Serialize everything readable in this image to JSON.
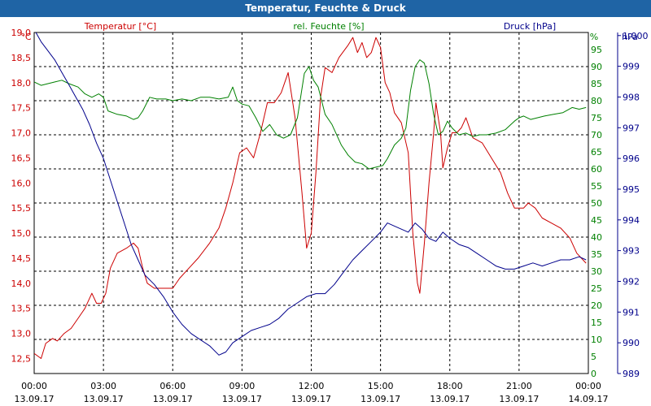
{
  "window": {
    "title": "Temperatur, Feuchte & Druck"
  },
  "colors": {
    "temp": "#cc0000",
    "humidity": "#008000",
    "pressure": "#00008b",
    "grid": "#000000",
    "axis_text": "#000000"
  },
  "chart_data": {
    "type": "line",
    "title": "Temperatur, Feuchte & Druck",
    "x_ticks": [
      {
        "t": 0,
        "time": "00:00",
        "date": "13.09.17"
      },
      {
        "t": 3,
        "time": "03:00",
        "date": "13.09.17"
      },
      {
        "t": 6,
        "time": "06:00",
        "date": "13.09.17"
      },
      {
        "t": 9,
        "time": "09:00",
        "date": "13.09.17"
      },
      {
        "t": 12,
        "time": "12:00",
        "date": "13.09.17"
      },
      {
        "t": 15,
        "time": "15:00",
        "date": "13.09.17"
      },
      {
        "t": 18,
        "time": "18:00",
        "date": "13.09.17"
      },
      {
        "t": 21,
        "time": "21:00",
        "date": "13.09.17"
      },
      {
        "t": 24,
        "time": "00:00",
        "date": "14.09.17"
      }
    ],
    "axes": {
      "temp": {
        "label": "Temperatur [°C]",
        "unit": "°C",
        "min": 12.2,
        "max": 19.0,
        "ticks": [
          "12,5",
          "13,0",
          "13,5",
          "14,0",
          "14,5",
          "15,0",
          "15,5",
          "16,0",
          "16,5",
          "17,0",
          "17,5",
          "18,0",
          "18,5",
          "19,0"
        ]
      },
      "humidity": {
        "label": "rel. Feuchte [%]",
        "unit": "%",
        "min": 0,
        "max": 100,
        "ticks": [
          "0",
          "5",
          "10",
          "15",
          "20",
          "25",
          "30",
          "35",
          "40",
          "45",
          "50",
          "55",
          "60",
          "65",
          "70",
          "75",
          "80",
          "85",
          "90",
          "95"
        ]
      },
      "pressure": {
        "label": "Druck [hPa]",
        "unit": "hPa",
        "min": 989,
        "max": 1000.1,
        "ticks": [
          "989",
          "990",
          "991",
          "992",
          "993",
          "994",
          "995",
          "996",
          "997",
          "998",
          "999",
          "1.000"
        ]
      }
    },
    "series": [
      {
        "name": "Temperatur",
        "axis": "temp",
        "color": "#cc0000",
        "points": [
          [
            0,
            12.6
          ],
          [
            0.3,
            12.5
          ],
          [
            0.5,
            12.8
          ],
          [
            0.8,
            12.9
          ],
          [
            1.0,
            12.85
          ],
          [
            1.3,
            13.0
          ],
          [
            1.6,
            13.1
          ],
          [
            1.9,
            13.3
          ],
          [
            2.2,
            13.5
          ],
          [
            2.5,
            13.8
          ],
          [
            2.7,
            13.6
          ],
          [
            2.9,
            13.6
          ],
          [
            3.1,
            13.8
          ],
          [
            3.3,
            14.3
          ],
          [
            3.6,
            14.6
          ],
          [
            4.0,
            14.7
          ],
          [
            4.3,
            14.8
          ],
          [
            4.5,
            14.7
          ],
          [
            4.7,
            14.3
          ],
          [
            4.9,
            14.0
          ],
          [
            5.2,
            13.9
          ],
          [
            5.6,
            13.9
          ],
          [
            6.0,
            13.9
          ],
          [
            6.3,
            14.1
          ],
          [
            6.7,
            14.3
          ],
          [
            7.1,
            14.5
          ],
          [
            7.6,
            14.8
          ],
          [
            8.0,
            15.1
          ],
          [
            8.3,
            15.5
          ],
          [
            8.6,
            16.0
          ],
          [
            8.9,
            16.6
          ],
          [
            9.2,
            16.7
          ],
          [
            9.5,
            16.5
          ],
          [
            9.8,
            17.0
          ],
          [
            10.1,
            17.6
          ],
          [
            10.4,
            17.6
          ],
          [
            10.7,
            17.8
          ],
          [
            11.0,
            18.2
          ],
          [
            11.3,
            17.3
          ],
          [
            11.6,
            15.8
          ],
          [
            11.8,
            14.7
          ],
          [
            12.0,
            15.0
          ],
          [
            12.2,
            16.2
          ],
          [
            12.4,
            17.7
          ],
          [
            12.6,
            18.3
          ],
          [
            12.9,
            18.2
          ],
          [
            13.2,
            18.5
          ],
          [
            13.6,
            18.75
          ],
          [
            13.8,
            18.9
          ],
          [
            14.0,
            18.6
          ],
          [
            14.2,
            18.8
          ],
          [
            14.4,
            18.5
          ],
          [
            14.6,
            18.6
          ],
          [
            14.8,
            18.9
          ],
          [
            15.0,
            18.7
          ],
          [
            15.2,
            18.0
          ],
          [
            15.4,
            17.8
          ],
          [
            15.6,
            17.4
          ],
          [
            15.9,
            17.2
          ],
          [
            16.2,
            16.6
          ],
          [
            16.4,
            15.0
          ],
          [
            16.6,
            14.0
          ],
          [
            16.7,
            13.8
          ],
          [
            16.9,
            14.8
          ],
          [
            17.1,
            16.0
          ],
          [
            17.3,
            17.0
          ],
          [
            17.4,
            17.6
          ],
          [
            17.6,
            17.0
          ],
          [
            17.7,
            16.3
          ],
          [
            17.9,
            16.7
          ],
          [
            18.1,
            17.0
          ],
          [
            18.3,
            17.0
          ],
          [
            18.5,
            17.1
          ],
          [
            18.7,
            17.3
          ],
          [
            19.0,
            16.9
          ],
          [
            19.4,
            16.8
          ],
          [
            19.8,
            16.5
          ],
          [
            20.2,
            16.2
          ],
          [
            20.5,
            15.8
          ],
          [
            20.8,
            15.5
          ],
          [
            21.2,
            15.5
          ],
          [
            21.4,
            15.6
          ],
          [
            21.7,
            15.5
          ],
          [
            22.0,
            15.3
          ],
          [
            22.4,
            15.2
          ],
          [
            22.8,
            15.1
          ],
          [
            23.2,
            14.9
          ],
          [
            23.5,
            14.6
          ],
          [
            23.9,
            14.4
          ]
        ]
      },
      {
        "name": "rel. Feuchte",
        "axis": "humidity",
        "color": "#008000",
        "points": [
          [
            0,
            85.5
          ],
          [
            0.3,
            84.5
          ],
          [
            0.6,
            85
          ],
          [
            0.9,
            85.5
          ],
          [
            1.2,
            86
          ],
          [
            1.5,
            85
          ],
          [
            1.9,
            84
          ],
          [
            2.2,
            82
          ],
          [
            2.5,
            81
          ],
          [
            2.8,
            82
          ],
          [
            3.0,
            81
          ],
          [
            3.2,
            77
          ],
          [
            3.6,
            76
          ],
          [
            4.0,
            75.5
          ],
          [
            4.3,
            74.5
          ],
          [
            4.5,
            75
          ],
          [
            4.7,
            77
          ],
          [
            5.0,
            81
          ],
          [
            5.3,
            80.5
          ],
          [
            5.7,
            80.5
          ],
          [
            6.0,
            80
          ],
          [
            6.4,
            80.5
          ],
          [
            6.8,
            80
          ],
          [
            7.2,
            81
          ],
          [
            7.6,
            81
          ],
          [
            8.0,
            80.5
          ],
          [
            8.4,
            81
          ],
          [
            8.6,
            84
          ],
          [
            8.8,
            80
          ],
          [
            9.0,
            79
          ],
          [
            9.3,
            78.5
          ],
          [
            9.6,
            75
          ],
          [
            9.9,
            71
          ],
          [
            10.2,
            73
          ],
          [
            10.5,
            70
          ],
          [
            10.8,
            69
          ],
          [
            11.1,
            70
          ],
          [
            11.4,
            75
          ],
          [
            11.7,
            88
          ],
          [
            11.9,
            90
          ],
          [
            12.1,
            86
          ],
          [
            12.3,
            84
          ],
          [
            12.6,
            76
          ],
          [
            12.9,
            73
          ],
          [
            13.3,
            67
          ],
          [
            13.6,
            64
          ],
          [
            13.9,
            62
          ],
          [
            14.2,
            61.5
          ],
          [
            14.5,
            60
          ],
          [
            14.8,
            60.5
          ],
          [
            15.1,
            61
          ],
          [
            15.3,
            63
          ],
          [
            15.6,
            67
          ],
          [
            15.9,
            69
          ],
          [
            16.1,
            72
          ],
          [
            16.3,
            83
          ],
          [
            16.5,
            90
          ],
          [
            16.7,
            92
          ],
          [
            16.9,
            91
          ],
          [
            17.1,
            85
          ],
          [
            17.3,
            76
          ],
          [
            17.5,
            70
          ],
          [
            17.7,
            71
          ],
          [
            17.9,
            74
          ],
          [
            18.1,
            72
          ],
          [
            18.4,
            70
          ],
          [
            18.7,
            70.5
          ],
          [
            19.0,
            69.5
          ],
          [
            19.3,
            70
          ],
          [
            19.6,
            70
          ],
          [
            20.0,
            70.5
          ],
          [
            20.4,
            71.5
          ],
          [
            20.8,
            74
          ],
          [
            21.0,
            75
          ],
          [
            21.2,
            75.5
          ],
          [
            21.5,
            74.5
          ],
          [
            21.8,
            75
          ],
          [
            22.1,
            75.5
          ],
          [
            22.5,
            76
          ],
          [
            22.9,
            76.5
          ],
          [
            23.3,
            78
          ],
          [
            23.6,
            77.5
          ],
          [
            23.9,
            78
          ]
        ]
      },
      {
        "name": "Druck",
        "axis": "pressure",
        "color": "#00008b",
        "points": [
          [
            0,
            1000.2
          ],
          [
            0.3,
            999.8
          ],
          [
            0.6,
            999.5
          ],
          [
            0.9,
            999.2
          ],
          [
            1.2,
            998.8
          ],
          [
            1.5,
            998.4
          ],
          [
            1.8,
            998.0
          ],
          [
            2.1,
            997.6
          ],
          [
            2.4,
            997.1
          ],
          [
            2.7,
            996.5
          ],
          [
            3.0,
            996.0
          ],
          [
            3.3,
            995.3
          ],
          [
            3.6,
            994.6
          ],
          [
            3.9,
            993.9
          ],
          [
            4.2,
            993.2
          ],
          [
            4.5,
            992.7
          ],
          [
            4.8,
            992.2
          ],
          [
            5.2,
            991.9
          ],
          [
            5.6,
            991.5
          ],
          [
            6.0,
            991.0
          ],
          [
            6.4,
            990.6
          ],
          [
            6.8,
            990.3
          ],
          [
            7.2,
            990.1
          ],
          [
            7.6,
            989.9
          ],
          [
            8.0,
            989.6
          ],
          [
            8.3,
            989.7
          ],
          [
            8.6,
            990.0
          ],
          [
            9.0,
            990.2
          ],
          [
            9.4,
            990.4
          ],
          [
            9.8,
            990.5
          ],
          [
            10.2,
            990.6
          ],
          [
            10.6,
            990.8
          ],
          [
            11.0,
            991.1
          ],
          [
            11.4,
            991.3
          ],
          [
            11.8,
            991.5
          ],
          [
            12.2,
            991.6
          ],
          [
            12.6,
            991.6
          ],
          [
            13.0,
            991.9
          ],
          [
            13.4,
            992.3
          ],
          [
            13.8,
            992.7
          ],
          [
            14.2,
            993.0
          ],
          [
            14.6,
            993.3
          ],
          [
            15.0,
            993.6
          ],
          [
            15.3,
            993.9
          ],
          [
            15.6,
            993.8
          ],
          [
            15.9,
            993.7
          ],
          [
            16.2,
            993.6
          ],
          [
            16.5,
            993.9
          ],
          [
            16.8,
            993.7
          ],
          [
            17.1,
            993.4
          ],
          [
            17.4,
            993.3
          ],
          [
            17.7,
            993.6
          ],
          [
            18.0,
            993.4
          ],
          [
            18.4,
            993.2
          ],
          [
            18.8,
            993.1
          ],
          [
            19.2,
            992.9
          ],
          [
            19.6,
            992.7
          ],
          [
            20.0,
            992.5
          ],
          [
            20.4,
            992.4
          ],
          [
            20.8,
            992.4
          ],
          [
            21.2,
            992.5
          ],
          [
            21.6,
            992.6
          ],
          [
            22.0,
            992.5
          ],
          [
            22.4,
            992.6
          ],
          [
            22.8,
            992.7
          ],
          [
            23.2,
            992.7
          ],
          [
            23.6,
            992.8
          ],
          [
            23.9,
            992.7
          ]
        ]
      }
    ]
  }
}
